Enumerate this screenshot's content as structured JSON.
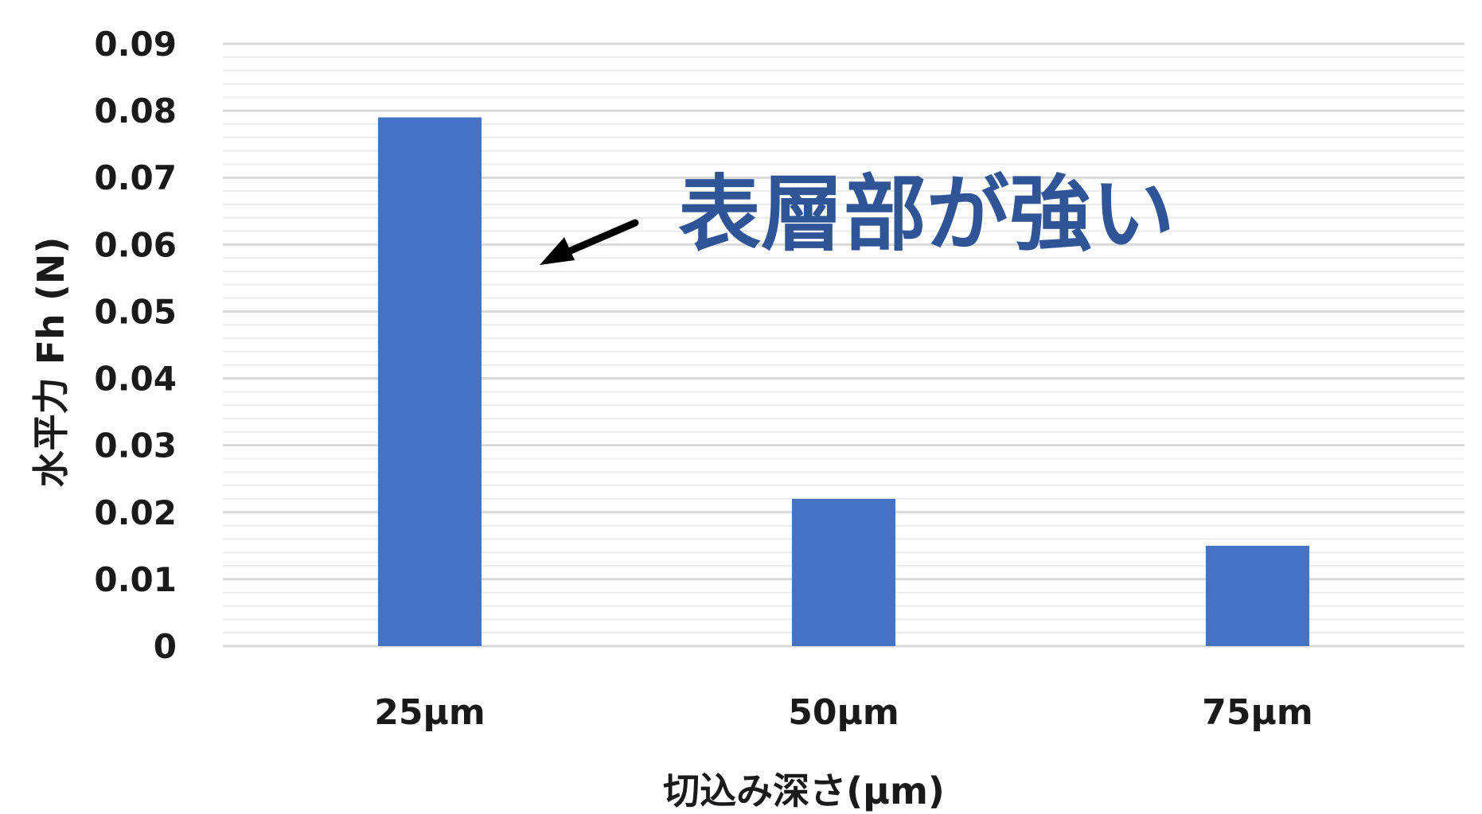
{
  "chart_data": {
    "type": "bar",
    "categories": [
      "25μm",
      "50μm",
      "75μm"
    ],
    "values": [
      0.079,
      0.022,
      0.015
    ],
    "title": "",
    "xlabel": "切込み深さ(μm)",
    "ylabel": "水平力 Fh (N)",
    "ylim": [
      0,
      0.09
    ],
    "yticks": [
      "0",
      "0.01",
      "0.02",
      "0.03",
      "0.04",
      "0.05",
      "0.06",
      "0.07",
      "0.08",
      "0.09"
    ],
    "grid": true,
    "minor_grid": true,
    "legend": "none",
    "annotation": {
      "text": "表層部が強い",
      "points_to": "25μm",
      "color": "#2f5597"
    },
    "colors": {
      "bar": "#4472c4",
      "grid_major": "#d9d9d9",
      "grid_minor": "#ececec",
      "text": "#1a1a1a",
      "arrow": "#000000"
    }
  }
}
